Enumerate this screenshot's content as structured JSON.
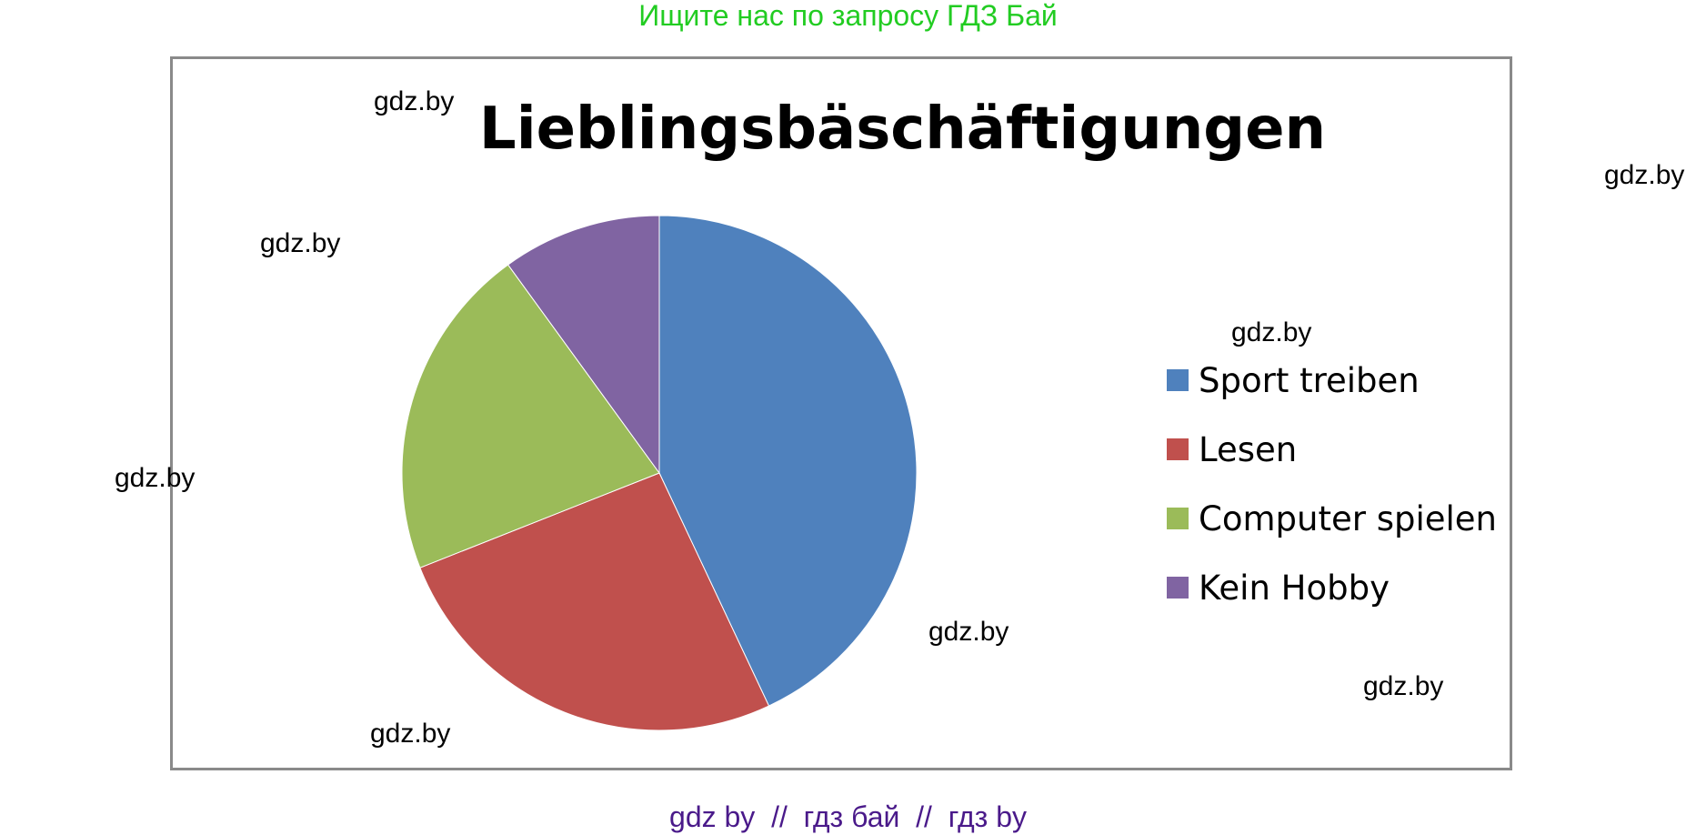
{
  "banner_top": "Ищите нас по запросу ГДЗ Бай",
  "banner_bottom": "gdz by  //  гдз бай  //  гдз by",
  "watermark_text": "gdz.by",
  "chart_data": {
    "type": "pie",
    "title": "Lieblingsbäschäftigungen",
    "categories": [
      "Sport treiben",
      "Lesen",
      "Computer spielen",
      "Kein Hobby"
    ],
    "values": [
      43,
      26,
      21,
      10
    ],
    "colors": [
      "#4F81BD",
      "#C0504D",
      "#9BBB59",
      "#8064A2"
    ],
    "legend_position": "right"
  }
}
